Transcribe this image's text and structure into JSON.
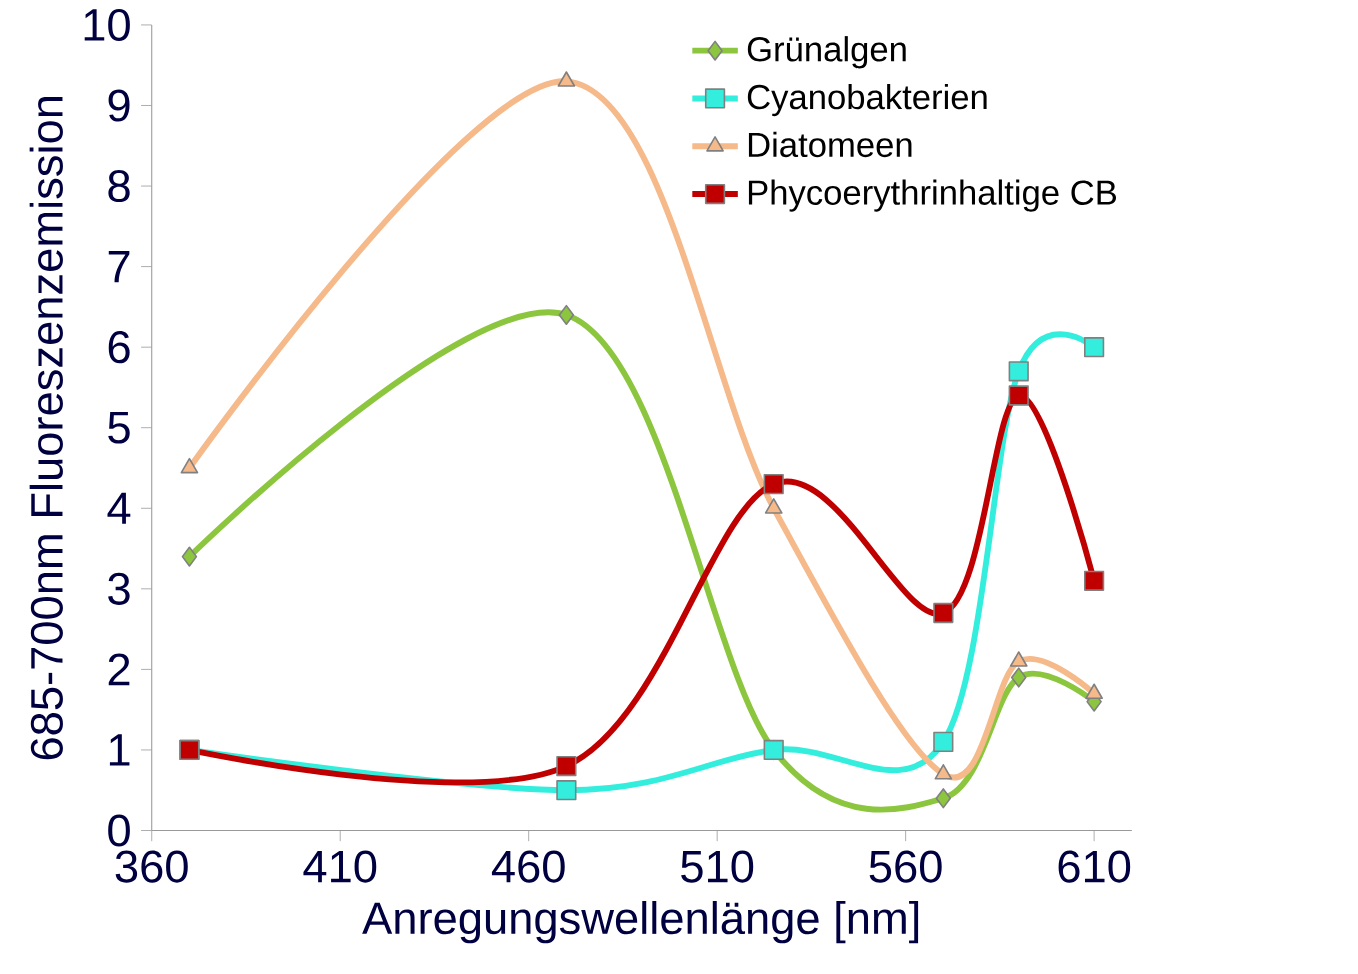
{
  "chart_data": {
    "type": "line",
    "xlabel": "Anregungswellenlänge [nm]",
    "ylabel": "685-700nm Fluoreszenzemission",
    "x": [
      370,
      470,
      525,
      570,
      590,
      610
    ],
    "xlim": [
      360,
      620
    ],
    "xticks": [
      360,
      410,
      460,
      510,
      560,
      610
    ],
    "ylim": [
      0,
      10
    ],
    "yticks": [
      0,
      1,
      2,
      3,
      4,
      5,
      6,
      7,
      8,
      9,
      10
    ],
    "grid": false,
    "legend": "top right",
    "line_style": "solid",
    "series": [
      {
        "name": "Grünalgen",
        "color": "#8cc63f",
        "marker": "diamond",
        "values": [
          3.4,
          6.4,
          1.0,
          0.4,
          1.9,
          1.6
        ]
      },
      {
        "name": "Cyanobakterien",
        "color": "#33eedd",
        "marker": "square",
        "values": [
          1.0,
          0.5,
          1.0,
          1.1,
          5.7,
          6.0
        ]
      },
      {
        "name": "Diatomeen",
        "color": "#f5b98a",
        "marker": "triangle",
        "values": [
          4.5,
          9.3,
          4.0,
          0.7,
          2.1,
          1.7
        ]
      },
      {
        "name": "Phycoerythrinhaltige CB",
        "color": "#c00000",
        "marker": "square",
        "values": [
          1.0,
          0.8,
          4.3,
          2.7,
          5.4,
          3.1
        ]
      }
    ]
  }
}
